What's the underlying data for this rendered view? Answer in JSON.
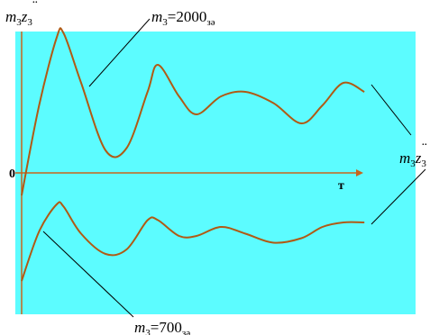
{
  "colors": {
    "plot_background": "#5cfcff",
    "curve": "#b05a14",
    "axis": "#c8641c",
    "leader": "#000000"
  },
  "labels": {
    "y_axis_symbol": "m",
    "y_axis_sub": "3",
    "y_axis_var": "z",
    "y_axis_var_sub": "3",
    "x_axis": "т",
    "origin": "0",
    "right_symbol": "m",
    "right_sub": "3",
    "right_var": "z",
    "right_var_sub": "3",
    "top_curve_symbol": "m",
    "top_curve_sub": "3",
    "top_curve_value": "=2000",
    "top_curve_unit": "зә",
    "bottom_curve_symbol": "m",
    "bottom_curve_sub": "3",
    "bottom_curve_value": "=700",
    "bottom_curve_unit": "зә"
  },
  "chart_data": {
    "type": "line",
    "title": "",
    "xlabel": "т",
    "ylabel": "m3z̈3",
    "grid": false,
    "legend": "none",
    "series": [
      {
        "name": "m3=2000зә",
        "points": [
          [
            0.0,
            -0.5
          ],
          [
            0.05,
            1.5
          ],
          [
            0.1,
            3.0
          ],
          [
            0.12,
            3.1
          ],
          [
            0.17,
            2.0
          ],
          [
            0.24,
            0.5
          ],
          [
            0.3,
            0.55
          ],
          [
            0.36,
            1.8
          ],
          [
            0.39,
            2.4
          ],
          [
            0.45,
            1.7
          ],
          [
            0.5,
            1.3
          ],
          [
            0.57,
            1.7
          ],
          [
            0.64,
            1.8
          ],
          [
            0.72,
            1.55
          ],
          [
            0.8,
            1.1
          ],
          [
            0.86,
            1.5
          ],
          [
            0.92,
            2.0
          ],
          [
            0.98,
            1.8
          ]
        ]
      },
      {
        "name": "m3=700зә",
        "points": [
          [
            0.0,
            -2.4
          ],
          [
            0.05,
            -1.3
          ],
          [
            0.1,
            -0.7
          ],
          [
            0.12,
            -0.75
          ],
          [
            0.17,
            -1.35
          ],
          [
            0.24,
            -1.8
          ],
          [
            0.3,
            -1.7
          ],
          [
            0.36,
            -1.05
          ],
          [
            0.39,
            -1.05
          ],
          [
            0.45,
            -1.4
          ],
          [
            0.5,
            -1.4
          ],
          [
            0.57,
            -1.2
          ],
          [
            0.64,
            -1.35
          ],
          [
            0.72,
            -1.55
          ],
          [
            0.8,
            -1.45
          ],
          [
            0.86,
            -1.2
          ],
          [
            0.92,
            -1.1
          ],
          [
            0.98,
            -1.1
          ]
        ]
      }
    ]
  }
}
